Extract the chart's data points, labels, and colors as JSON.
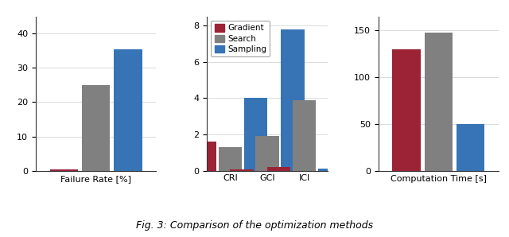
{
  "failure_rate": {
    "gradient": 0.3,
    "search": 25.0,
    "sampling": 35.5,
    "ylim": [
      0,
      45
    ],
    "yticks": [
      0,
      10,
      20,
      30,
      40
    ],
    "xlabel": "Failure Rate [%]"
  },
  "risk_metrics": {
    "categories": [
      "CRI",
      "GCI",
      "ICI"
    ],
    "gradient": [
      1.6,
      0.05,
      0.2
    ],
    "search": [
      1.3,
      1.9,
      3.9
    ],
    "sampling": [
      4.0,
      7.8,
      0.1
    ],
    "ylim": [
      0,
      8.5
    ],
    "yticks": [
      0,
      2,
      4,
      6,
      8
    ],
    "xlabel": ""
  },
  "comp_time": {
    "gradient": 130.0,
    "search": 148.0,
    "sampling": 50.0,
    "ylim": [
      0,
      165
    ],
    "yticks": [
      0,
      50,
      100,
      150
    ],
    "xlabel": "Computation Time [s]"
  },
  "colors": {
    "gradient": "#9b2335",
    "search": "#808080",
    "sampling": "#3674b5"
  },
  "legend": {
    "gradient": "Gradient",
    "search": "Search",
    "sampling": "Sampling"
  },
  "bar_width": 0.22,
  "figure_caption": "Fig. 3: Comparison of the optimization methods"
}
